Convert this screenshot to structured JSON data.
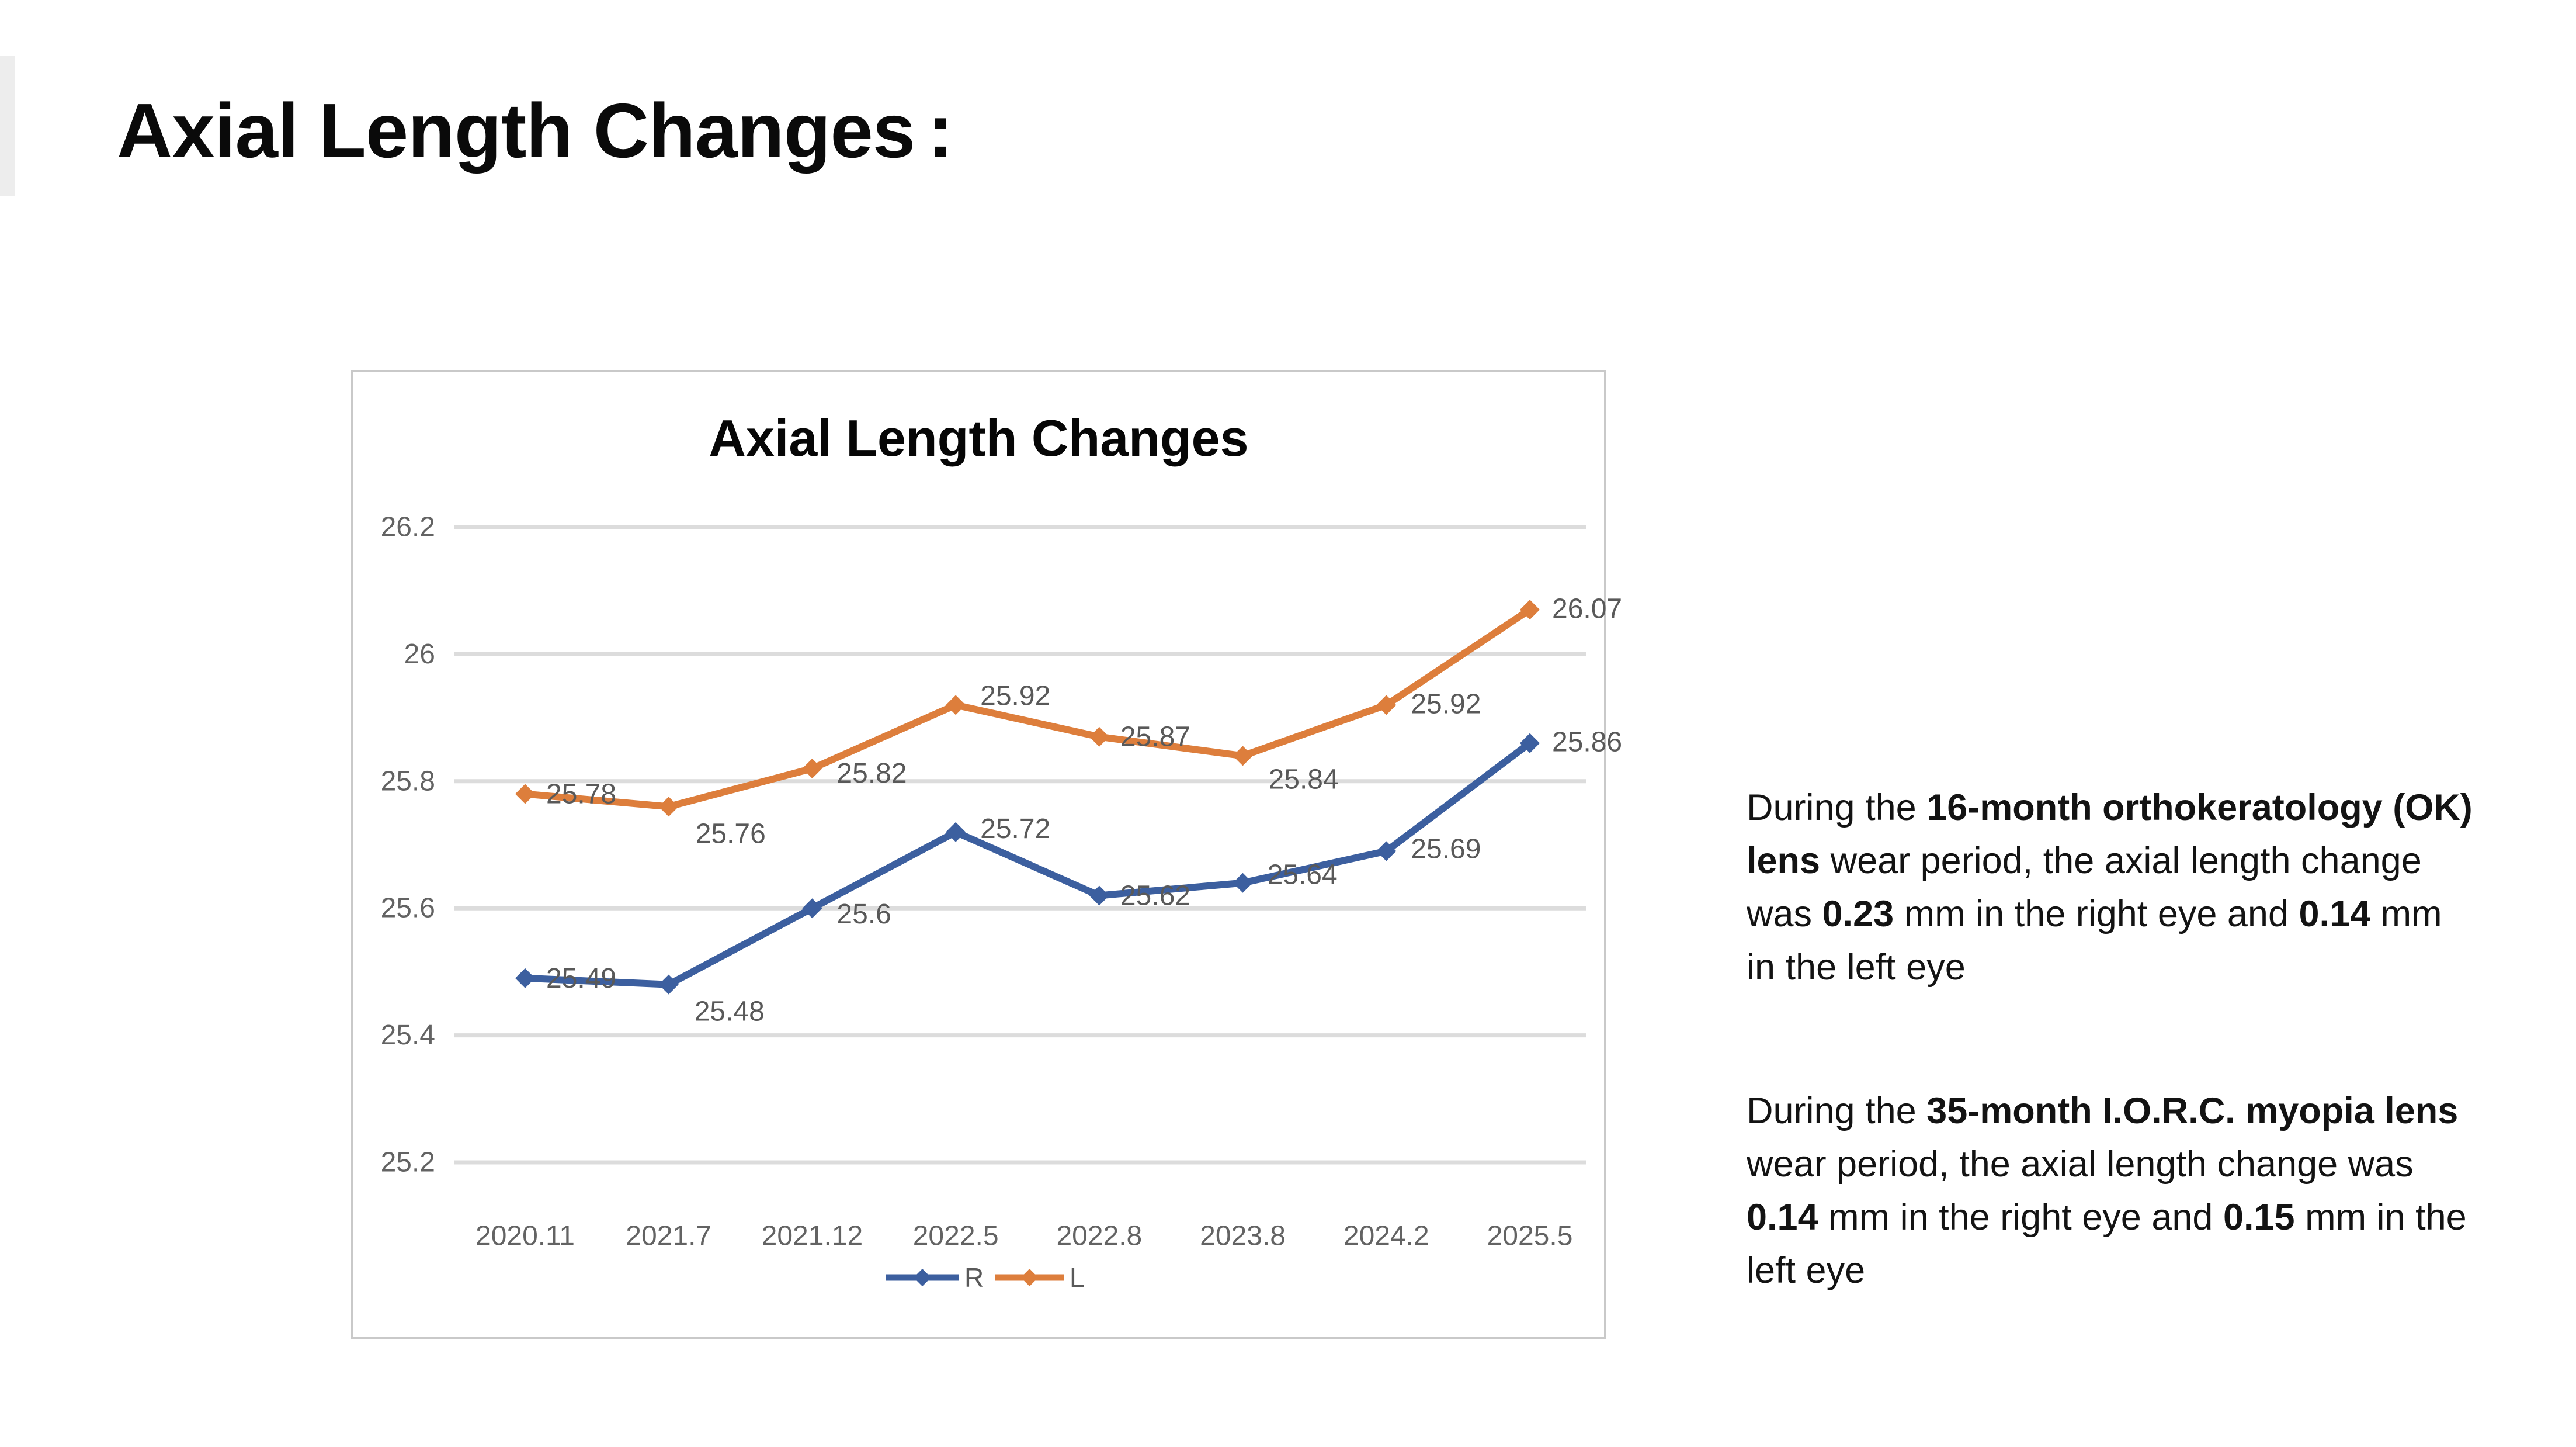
{
  "page": {
    "title": "Axial Length Changes",
    "title_colon": ":"
  },
  "chart_data": {
    "type": "line",
    "title": "Axial Length Changes",
    "categories": [
      "2020.11",
      "2021.7",
      "2021.12",
      "2022.5",
      "2022.8",
      "2023.8",
      "2024.2",
      "2025.5"
    ],
    "series": [
      {
        "name": "R",
        "color": "#3c5f9f",
        "values": [
          25.49,
          25.48,
          25.6,
          25.72,
          25.62,
          25.64,
          25.69,
          25.86
        ]
      },
      {
        "name": "L",
        "color": "#dd7e3c",
        "values": [
          25.78,
          25.76,
          25.82,
          25.92,
          25.87,
          25.84,
          25.92,
          26.07
        ]
      }
    ],
    "ylim": [
      25.2,
      26.2
    ],
    "ytick_labels": [
      "26.2",
      "26",
      "25.8",
      "25.6",
      "25.4",
      "25.2"
    ],
    "grid": true,
    "legend_position": "bottom",
    "legend_labels": [
      "R",
      "L"
    ],
    "data_labels": true,
    "gridline_color": "#dcdcdc",
    "axis_label_color": "#636363",
    "data_label_color": "#595959"
  },
  "notes": [
    {
      "segments": [
        {
          "text": "During the ",
          "bold": false
        },
        {
          "text": "16-month orthokeratology (OK) lens",
          "bold": true
        },
        {
          "text": " wear period, the axial length change was ",
          "bold": false
        },
        {
          "text": "0.23",
          "bold": true
        },
        {
          "text": " mm in the right eye and ",
          "bold": false
        },
        {
          "text": "0.14",
          "bold": true
        },
        {
          "text": " mm in the left eye",
          "bold": false
        }
      ]
    },
    {
      "segments": [
        {
          "text": "During the ",
          "bold": false
        },
        {
          "text": "35-month I.O.R.C. myopia lens",
          "bold": true
        },
        {
          "text": " wear period, the axial length change was ",
          "bold": false
        },
        {
          "text": "0.14",
          "bold": true
        },
        {
          "text": " mm in the right eye and ",
          "bold": false
        },
        {
          "text": "0.15",
          "bold": true
        },
        {
          "text": " mm in the left eye",
          "bold": false
        }
      ]
    }
  ]
}
